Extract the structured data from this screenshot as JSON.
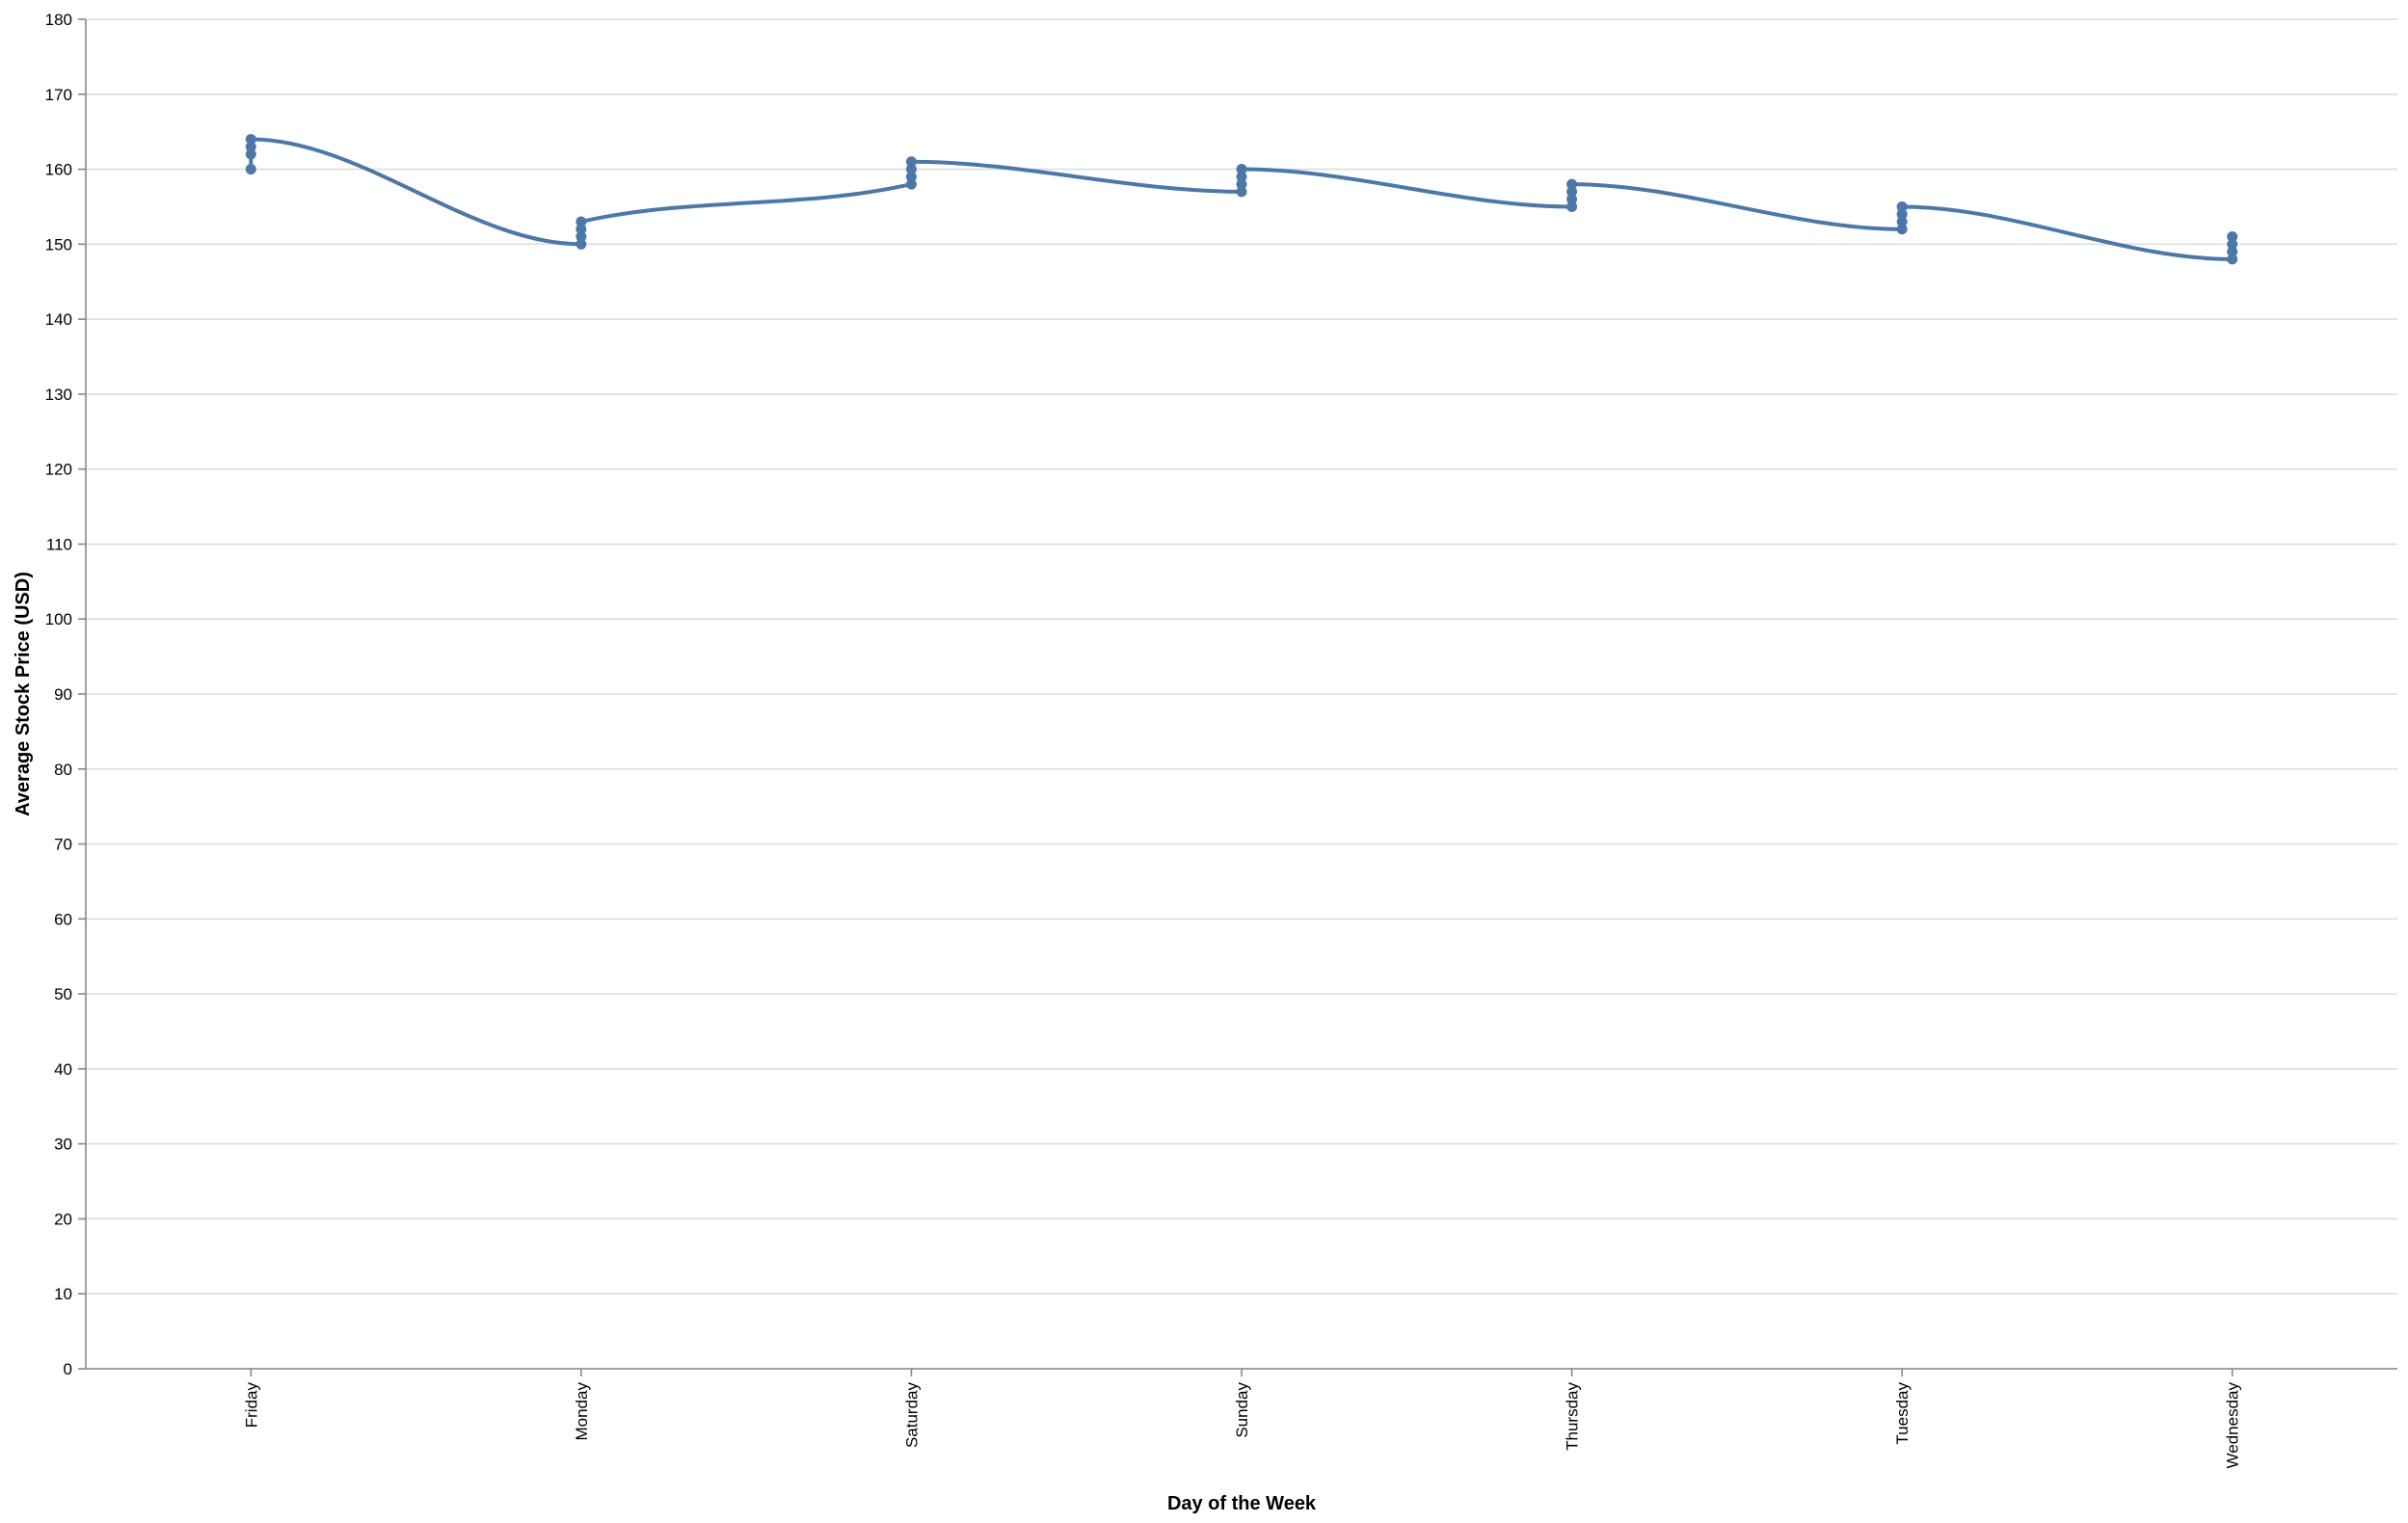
{
  "chart_data": {
    "type": "line",
    "title": "",
    "xlabel": "Day of the Week",
    "ylabel": "Average Stock Price (USD)",
    "categories": [
      "Friday",
      "Monday",
      "Saturday",
      "Sunday",
      "Thursday",
      "Tuesday",
      "Wednesday"
    ],
    "ylim": [
      0,
      180
    ],
    "yticks": [
      0,
      10,
      20,
      30,
      40,
      50,
      60,
      70,
      80,
      90,
      100,
      110,
      120,
      130,
      140,
      150,
      160,
      170,
      180
    ],
    "grid": true,
    "legend": "none",
    "interpolation": "monotone",
    "color": "#4c78a8",
    "series": [
      {
        "points": [
          {
            "x": "Friday",
            "y": 160
          },
          {
            "x": "Friday",
            "y": 162
          },
          {
            "x": "Friday",
            "y": 163
          },
          {
            "x": "Friday",
            "y": 164
          },
          {
            "x": "Monday",
            "y": 150
          },
          {
            "x": "Monday",
            "y": 151
          },
          {
            "x": "Monday",
            "y": 152
          },
          {
            "x": "Monday",
            "y": 153
          },
          {
            "x": "Saturday",
            "y": 158
          },
          {
            "x": "Saturday",
            "y": 159
          },
          {
            "x": "Saturday",
            "y": 160
          },
          {
            "x": "Saturday",
            "y": 161
          },
          {
            "x": "Sunday",
            "y": 157
          },
          {
            "x": "Sunday",
            "y": 158
          },
          {
            "x": "Sunday",
            "y": 159
          },
          {
            "x": "Sunday",
            "y": 160
          },
          {
            "x": "Thursday",
            "y": 155
          },
          {
            "x": "Thursday",
            "y": 156
          },
          {
            "x": "Thursday",
            "y": 157
          },
          {
            "x": "Thursday",
            "y": 158
          },
          {
            "x": "Tuesday",
            "y": 152
          },
          {
            "x": "Tuesday",
            "y": 153
          },
          {
            "x": "Tuesday",
            "y": 154
          },
          {
            "x": "Tuesday",
            "y": 155
          },
          {
            "x": "Wednesday",
            "y": 148
          },
          {
            "x": "Wednesday",
            "y": 149
          },
          {
            "x": "Wednesday",
            "y": 150
          },
          {
            "x": "Wednesday",
            "y": 151
          }
        ]
      }
    ]
  }
}
